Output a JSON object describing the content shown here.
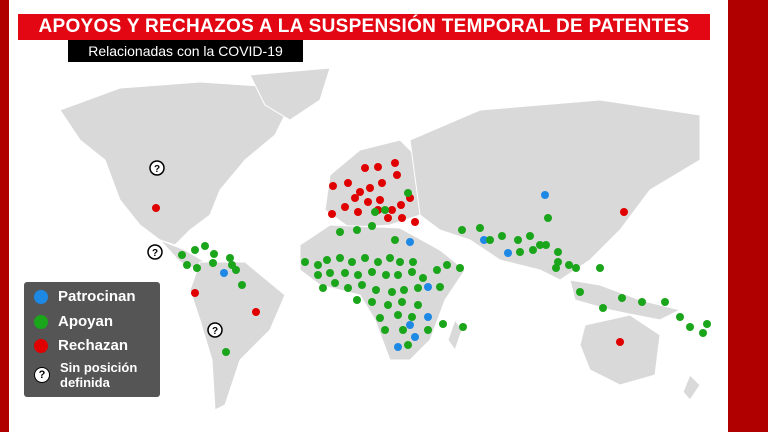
{
  "title": "APOYOS Y RECHAZOS A LA SUSPENSIÓN TEMPORAL DE PATENTES",
  "subtitle": "Relacionadas con la COVID-19",
  "legend": {
    "sponsor": {
      "label": "Patrocinan",
      "color": "#1e88e5"
    },
    "support": {
      "label": "Apoyan",
      "color": "#1aa51a"
    },
    "reject": {
      "label": "Rechazan",
      "color": "#e00000"
    },
    "undefined": {
      "label": "Sin posición definida",
      "icon": "question-icon"
    }
  }
}
